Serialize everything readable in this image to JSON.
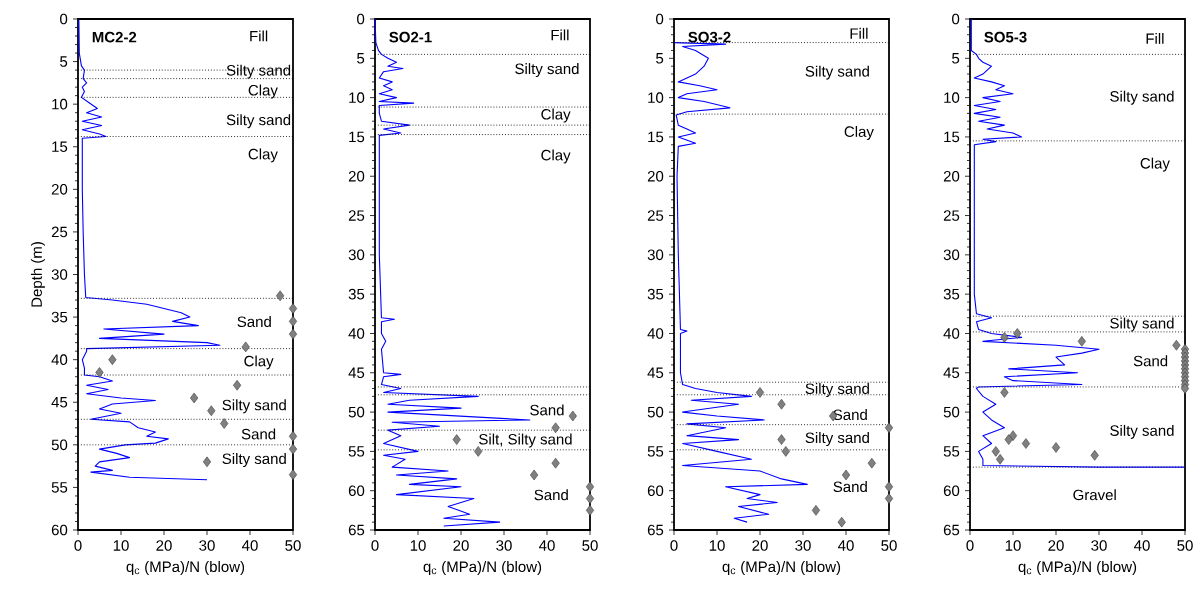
{
  "chart_data": [
    {
      "type": "line",
      "title": "MC2-2",
      "xlabel": "q$_{c}$ (MPa)/N (blow)",
      "ylabel": "Depth (m)",
      "xlim": [
        0,
        50
      ],
      "ylim": [
        60,
        0
      ],
      "xticks": [
        0,
        10,
        20,
        30,
        40,
        50
      ],
      "yticks": [
        0,
        5,
        10,
        15,
        20,
        25,
        30,
        35,
        40,
        45,
        50,
        55,
        60
      ],
      "series": [
        {
          "color": "#0000ff",
          "marker": "none",
          "x": [
            0.2,
            0.3,
            0.8,
            1.5,
            1.2,
            2,
            1,
            1.5,
            0.8,
            2.5,
            4.5,
            2,
            5.5,
            1,
            5.5,
            1,
            5,
            6.5,
            1,
            1,
            1.2,
            1.5,
            1.8,
            8,
            16,
            20,
            24,
            26,
            22,
            28,
            6,
            20,
            5,
            30,
            33,
            2,
            2,
            1,
            1.5,
            1.5,
            5,
            8,
            2,
            7,
            2,
            10,
            18,
            8,
            5,
            10,
            3,
            12,
            14,
            18,
            16,
            21,
            18,
            11,
            5,
            9,
            12,
            5,
            4,
            8,
            3,
            12,
            30
          ],
          "values": [
            0.1,
            4,
            5.5,
            6,
            7,
            7.5,
            8,
            8.5,
            9.2,
            9.8,
            10.5,
            11,
            11.5,
            12,
            12.5,
            13,
            13.5,
            13.8,
            14,
            20,
            25,
            30,
            32.7,
            33,
            33.5,
            34,
            34.5,
            35,
            35.5,
            36,
            36.4,
            37,
            37.5,
            38,
            38.3,
            38.7,
            39,
            40,
            41,
            41.8,
            42,
            42.5,
            43,
            43.5,
            44,
            44.5,
            44.8,
            45.2,
            45.8,
            46.3,
            47,
            47.3,
            48,
            48.5,
            49,
            49.3,
            49.8,
            50,
            50.5,
            51,
            51.5,
            52,
            52.5,
            53,
            53.2,
            53.8,
            54.1
          ]
        },
        {
          "type": "scatter",
          "color": "#808080",
          "marker": "diamond",
          "x": [
            47,
            50,
            50,
            50,
            39,
            8,
            5,
            37,
            27,
            31,
            34,
            50,
            50,
            30,
            50
          ],
          "values": [
            32.5,
            34,
            35.5,
            37,
            38.5,
            40,
            41.5,
            43,
            44.5,
            46,
            47.5,
            49,
            50.5,
            52,
            53.5
          ]
        }
      ],
      "ref_lines": [
        {
          "axis": "y",
          "value": 6,
          "line_style": "dotted"
        },
        {
          "axis": "y",
          "value": 7,
          "line_style": "dotted"
        },
        {
          "axis": "y",
          "value": 9.2,
          "line_style": "dotted"
        },
        {
          "axis": "y",
          "value": 13.8,
          "line_style": "dotted"
        },
        {
          "axis": "y",
          "value": 32.8,
          "line_style": "dotted"
        },
        {
          "axis": "y",
          "value": 38.7,
          "line_style": "dotted"
        },
        {
          "axis": "y",
          "value": 41.8,
          "line_style": "dotted"
        },
        {
          "axis": "y",
          "value": 47,
          "line_style": "dotted"
        },
        {
          "axis": "y",
          "value": 50,
          "line_style": "dotted"
        }
      ],
      "annotations": [
        "Fill",
        "Silty sand",
        "Clay",
        "Silty sand",
        "Clay",
        "Sand",
        "Clay",
        "Silty sand",
        "Sand",
        "Silty sand"
      ]
    },
    {
      "type": "line",
      "title": "SO2-1",
      "xlabel": "q$_{c}$ (MPa)/N (blow)",
      "xlim": [
        0,
        50
      ],
      "ylim": [
        65,
        0
      ],
      "xticks": [
        0,
        10,
        20,
        30,
        40,
        50
      ],
      "yticks": [
        0,
        5,
        10,
        15,
        20,
        25,
        30,
        35,
        40,
        45,
        50,
        55,
        60,
        65
      ],
      "series": [
        {
          "color": "#0000ff",
          "marker": "none",
          "x": [
            0,
            0.2,
            0.8,
            1.5,
            3,
            5,
            3,
            6.5,
            2,
            1,
            4,
            2,
            4,
            1,
            5,
            1,
            9,
            1,
            1,
            1.5,
            8,
            2,
            6,
            1,
            1,
            1.5,
            4.5,
            1.5,
            1.5,
            2.5,
            1.5,
            2,
            6,
            2,
            1.5,
            6,
            2,
            24,
            8,
            3,
            20,
            3,
            36,
            4,
            15,
            3,
            6,
            2,
            10,
            2,
            7,
            4,
            17,
            5,
            19,
            8,
            20,
            5,
            23,
            17,
            22,
            16,
            29,
            16
          ],
          "values": [
            0,
            3,
            4,
            4.5,
            5,
            5.5,
            6,
            6.3,
            6.7,
            7.5,
            8,
            8.5,
            9,
            9.5,
            10,
            10.5,
            10.7,
            11,
            12,
            13,
            13.5,
            14,
            14.5,
            14.8,
            30,
            38,
            38.2,
            38.5,
            40,
            41,
            42,
            45,
            45.2,
            45.5,
            46.5,
            47,
            47.5,
            48,
            48.5,
            49,
            49.5,
            50,
            51,
            51.3,
            51.8,
            52.3,
            53,
            54,
            55,
            55.5,
            56,
            57,
            57.5,
            58,
            58.5,
            59.2,
            59.5,
            60.5,
            61,
            62,
            63,
            63.5,
            64,
            64.5
          ]
        },
        {
          "type": "scatter",
          "color": "#808080",
          "marker": "diamond",
          "x": [
            46,
            42,
            19,
            24,
            42,
            37,
            50,
            50,
            50
          ],
          "values": [
            50.5,
            52,
            53.5,
            55,
            56.5,
            58,
            59.5,
            61,
            62.5
          ]
        }
      ],
      "ref_lines": [
        {
          "axis": "y",
          "value": 4.5,
          "line_style": "dotted"
        },
        {
          "axis": "y",
          "value": 11.2,
          "line_style": "dotted"
        },
        {
          "axis": "y",
          "value": 13.5,
          "line_style": "dotted"
        },
        {
          "axis": "y",
          "value": 14.7,
          "line_style": "dotted"
        },
        {
          "axis": "y",
          "value": 46.8,
          "line_style": "dotted"
        },
        {
          "axis": "y",
          "value": 47.8,
          "line_style": "dotted"
        },
        {
          "axis": "y",
          "value": 52.3,
          "line_style": "dotted"
        },
        {
          "axis": "y",
          "value": 54.8,
          "line_style": "dotted"
        }
      ],
      "annotations": [
        "Fill",
        "Silty sand",
        "Clay",
        "Clay",
        "Sand",
        "Silt, Silty sand",
        "Sand"
      ]
    },
    {
      "type": "line",
      "title": "SO3-2",
      "xlabel": "q$_{c}$ (MPa)/N (blow)",
      "xlim": [
        0,
        50
      ],
      "ylim": [
        65,
        0
      ],
      "xticks": [
        0,
        10,
        20,
        30,
        40,
        50
      ],
      "yticks": [
        0,
        5,
        10,
        15,
        20,
        25,
        30,
        35,
        40,
        45,
        50,
        55,
        60,
        65
      ],
      "series": [
        {
          "color": "#0000ff",
          "marker": "none",
          "x": [
            0,
            12,
            2,
            5,
            8,
            7,
            5,
            3,
            1,
            6,
            10,
            3,
            1,
            7,
            13,
            3,
            0.5,
            1,
            3,
            5,
            1,
            5,
            1,
            0.7,
            1,
            1.5,
            3,
            1.5,
            1.5,
            2,
            5,
            10,
            18,
            4,
            15,
            2,
            10,
            21,
            3,
            12,
            3,
            15,
            2,
            10,
            18,
            2,
            20,
            25,
            31,
            12,
            20,
            17,
            24,
            15,
            22,
            14,
            17
          ],
          "values": [
            3,
            3.2,
            3.5,
            4,
            5,
            6,
            7,
            7.5,
            8,
            8.5,
            9,
            9.5,
            10,
            10.5,
            11.3,
            11.8,
            12.2,
            13.5,
            14,
            14.5,
            15,
            15.8,
            16.2,
            20,
            30,
            39.5,
            39.7,
            40,
            45,
            46.5,
            47,
            47.5,
            48,
            48.5,
            49,
            50,
            50.5,
            51,
            51.5,
            52,
            53,
            53.5,
            54,
            55,
            56,
            56.8,
            57.5,
            58.5,
            59.2,
            59.5,
            60.5,
            61,
            61.5,
            62,
            63,
            63.5,
            64
          ]
        },
        {
          "type": "scatter",
          "color": "#808080",
          "marker": "diamond",
          "x": [
            20,
            25,
            37,
            50,
            25,
            26,
            46,
            40,
            50,
            50,
            33,
            39
          ],
          "values": [
            47.5,
            49,
            50.5,
            52,
            53.5,
            55,
            56.5,
            58,
            59.5,
            61,
            62.5,
            64
          ]
        }
      ],
      "ref_lines": [
        {
          "axis": "y",
          "value": 3,
          "line_style": "dotted"
        },
        {
          "axis": "y",
          "value": 12.1,
          "line_style": "dotted"
        },
        {
          "axis": "y",
          "value": 46.2,
          "line_style": "dotted"
        },
        {
          "axis": "y",
          "value": 47.8,
          "line_style": "dotted"
        },
        {
          "axis": "y",
          "value": 51.6,
          "line_style": "dotted"
        },
        {
          "axis": "y",
          "value": 54.8,
          "line_style": "dotted"
        }
      ],
      "annotations": [
        "Fill",
        "Silty sand",
        "Clay",
        "Silty sand",
        "Sand",
        "Silty sand",
        "Sand"
      ]
    },
    {
      "type": "line",
      "title": "SO5-3",
      "xlabel": "q$_{c}$ (MPa)/N (blow)",
      "xlim": [
        0,
        50
      ],
      "ylim": [
        65,
        0
      ],
      "xticks": [
        0,
        10,
        20,
        30,
        40,
        50
      ],
      "yticks": [
        0,
        5,
        10,
        15,
        20,
        25,
        30,
        35,
        40,
        45,
        50,
        55,
        60,
        65
      ],
      "series": [
        {
          "color": "#0000ff",
          "marker": "none",
          "x": [
            0.3,
            0.3,
            1.5,
            2,
            3,
            5,
            3,
            1,
            5,
            8,
            6,
            10,
            3,
            7,
            1,
            6,
            1,
            7,
            2,
            8,
            4,
            10,
            12,
            3,
            6,
            1,
            1,
            1.5,
            5,
            1.5,
            2,
            5,
            12,
            3,
            20,
            30,
            26,
            20,
            22,
            9,
            25,
            8,
            10,
            26,
            2,
            1.5,
            3,
            6,
            3,
            5,
            8,
            3,
            5,
            2,
            3,
            3,
            30,
            50
          ],
          "values": [
            0,
            4,
            4.5,
            5,
            5.5,
            6,
            7,
            7.5,
            8,
            8.5,
            9,
            9.5,
            10,
            10.5,
            11,
            11.5,
            12,
            12.5,
            13,
            13.5,
            14,
            14.5,
            15,
            15.3,
            15.6,
            16,
            35,
            37.5,
            38,
            38.5,
            39.5,
            40,
            40.5,
            41,
            41.5,
            42,
            42.5,
            43,
            44,
            44.5,
            45,
            45.5,
            46,
            46.5,
            46.8,
            47,
            48,
            49,
            50,
            51,
            52,
            53,
            54,
            55,
            56,
            56.8,
            57,
            57
          ]
        },
        {
          "type": "scatter",
          "color": "#808080",
          "marker": "diamond",
          "x": [
            11,
            8,
            26,
            48,
            50,
            50,
            50,
            50,
            50,
            50,
            50,
            50,
            50,
            50,
            50,
            8,
            10,
            9,
            13,
            20,
            6,
            29,
            7
          ],
          "values": [
            40,
            40.5,
            41,
            41.5,
            42,
            42.5,
            43,
            43.5,
            44,
            44.5,
            45,
            45.5,
            46,
            46.5,
            47,
            47.5,
            53,
            53.5,
            54,
            54.5,
            55,
            55.5,
            56
          ]
        }
      ],
      "ref_lines": [
        {
          "axis": "y",
          "value": 4.5,
          "line_style": "dotted"
        },
        {
          "axis": "y",
          "value": 15.5,
          "line_style": "dotted"
        },
        {
          "axis": "y",
          "value": 37.8,
          "line_style": "dotted"
        },
        {
          "axis": "y",
          "value": 39.8,
          "line_style": "dotted"
        },
        {
          "axis": "y",
          "value": 46.8,
          "line_style": "dotted"
        },
        {
          "axis": "y",
          "value": 57,
          "line_style": "dotted"
        }
      ],
      "annotations": [
        "Fill",
        "Silty sand",
        "Clay",
        "Silty sand",
        "Sand",
        "Silty sand",
        "Gravel"
      ]
    }
  ]
}
